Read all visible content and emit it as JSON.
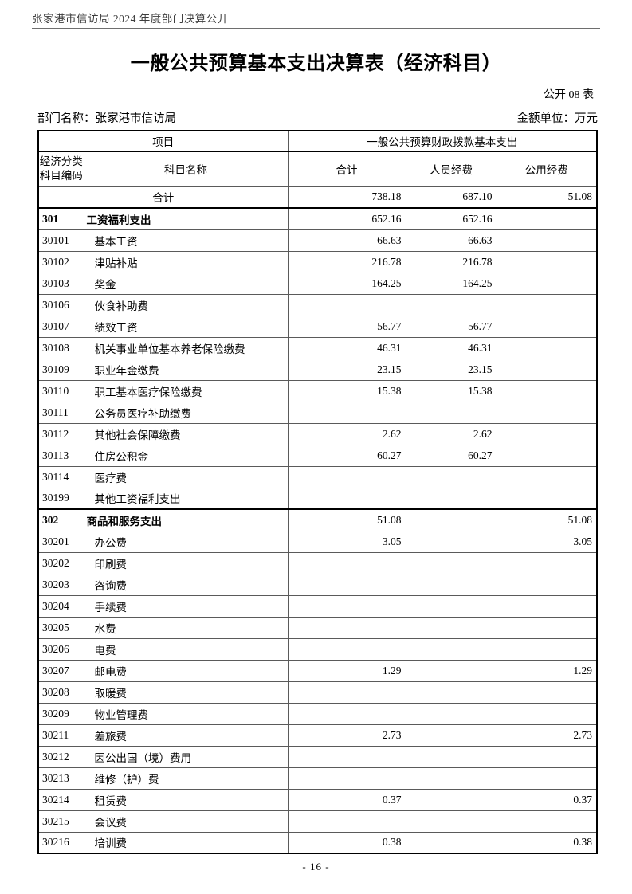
{
  "doc_header": "张家港市信访局 2024 年度部门决算公开",
  "title": "一般公共预算基本支出决算表（经济科目）",
  "table_label": "公开 08 表",
  "meta": {
    "department": "部门名称：张家港市信访局",
    "unit": "金额单位：万元"
  },
  "colors": {
    "header_text": "#3d3d3d",
    "header_rule": "#6e6e6e",
    "grid_thin": "#5a5a5a",
    "grid_thick": "#000000"
  },
  "table": {
    "header": {
      "project": "项目",
      "funding": "一般公共预算财政拨款基本支出",
      "code_line1": "经济分类",
      "code_line2": "科目编码",
      "subject": "科目名称",
      "total": "合计",
      "personnel": "人员经费",
      "public": "公用经费"
    },
    "rows": [
      {
        "kind": "grand",
        "code": "",
        "name": "合计",
        "total": "738.18",
        "personnel": "687.10",
        "public": "51.08"
      },
      {
        "kind": "section",
        "code": "301",
        "name": "工资福利支出",
        "total": "652.16",
        "personnel": "652.16",
        "public": ""
      },
      {
        "kind": "item",
        "code": "30101",
        "name": "基本工资",
        "total": "66.63",
        "personnel": "66.63",
        "public": ""
      },
      {
        "kind": "item",
        "code": "30102",
        "name": "津贴补贴",
        "total": "216.78",
        "personnel": "216.78",
        "public": ""
      },
      {
        "kind": "item",
        "code": "30103",
        "name": "奖金",
        "total": "164.25",
        "personnel": "164.25",
        "public": ""
      },
      {
        "kind": "item",
        "code": "30106",
        "name": "伙食补助费",
        "total": "",
        "personnel": "",
        "public": ""
      },
      {
        "kind": "item",
        "code": "30107",
        "name": "绩效工资",
        "total": "56.77",
        "personnel": "56.77",
        "public": ""
      },
      {
        "kind": "item",
        "code": "30108",
        "name": "机关事业单位基本养老保险缴费",
        "total": "46.31",
        "personnel": "46.31",
        "public": ""
      },
      {
        "kind": "item",
        "code": "30109",
        "name": "职业年金缴费",
        "total": "23.15",
        "personnel": "23.15",
        "public": ""
      },
      {
        "kind": "item",
        "code": "30110",
        "name": "职工基本医疗保险缴费",
        "total": "15.38",
        "personnel": "15.38",
        "public": ""
      },
      {
        "kind": "item",
        "code": "30111",
        "name": "公务员医疗补助缴费",
        "total": "",
        "personnel": "",
        "public": ""
      },
      {
        "kind": "item",
        "code": "30112",
        "name": "其他社会保障缴费",
        "total": "2.62",
        "personnel": "2.62",
        "public": ""
      },
      {
        "kind": "item",
        "code": "30113",
        "name": "住房公积金",
        "total": "60.27",
        "personnel": "60.27",
        "public": ""
      },
      {
        "kind": "item",
        "code": "30114",
        "name": "医疗费",
        "total": "",
        "personnel": "",
        "public": ""
      },
      {
        "kind": "item",
        "code": "30199",
        "name": "其他工资福利支出",
        "total": "",
        "personnel": "",
        "public": ""
      },
      {
        "kind": "section",
        "code": "302",
        "name": "商品和服务支出",
        "total": "51.08",
        "personnel": "",
        "public": "51.08"
      },
      {
        "kind": "item",
        "code": "30201",
        "name": "办公费",
        "total": "3.05",
        "personnel": "",
        "public": "3.05"
      },
      {
        "kind": "item",
        "code": "30202",
        "name": "印刷费",
        "total": "",
        "personnel": "",
        "public": ""
      },
      {
        "kind": "item",
        "code": "30203",
        "name": "咨询费",
        "total": "",
        "personnel": "",
        "public": ""
      },
      {
        "kind": "item",
        "code": "30204",
        "name": "手续费",
        "total": "",
        "personnel": "",
        "public": ""
      },
      {
        "kind": "item",
        "code": "30205",
        "name": "水费",
        "total": "",
        "personnel": "",
        "public": ""
      },
      {
        "kind": "item",
        "code": "30206",
        "name": "电费",
        "total": "",
        "personnel": "",
        "public": ""
      },
      {
        "kind": "item",
        "code": "30207",
        "name": "邮电费",
        "total": "1.29",
        "personnel": "",
        "public": "1.29"
      },
      {
        "kind": "item",
        "code": "30208",
        "name": "取暖费",
        "total": "",
        "personnel": "",
        "public": ""
      },
      {
        "kind": "item",
        "code": "30209",
        "name": "物业管理费",
        "total": "",
        "personnel": "",
        "public": ""
      },
      {
        "kind": "item",
        "code": "30211",
        "name": "差旅费",
        "total": "2.73",
        "personnel": "",
        "public": "2.73"
      },
      {
        "kind": "item",
        "code": "30212",
        "name": "因公出国（境）费用",
        "total": "",
        "personnel": "",
        "public": ""
      },
      {
        "kind": "item",
        "code": "30213",
        "name": "维修（护）费",
        "total": "",
        "personnel": "",
        "public": ""
      },
      {
        "kind": "item",
        "code": "30214",
        "name": "租赁费",
        "total": "0.37",
        "personnel": "",
        "public": "0.37"
      },
      {
        "kind": "item",
        "code": "30215",
        "name": "会议费",
        "total": "",
        "personnel": "",
        "public": ""
      },
      {
        "kind": "item",
        "code": "30216",
        "name": "培训费",
        "total": "0.38",
        "personnel": "",
        "public": "0.38"
      }
    ]
  },
  "footer": {
    "page_number": "- 16 -"
  }
}
